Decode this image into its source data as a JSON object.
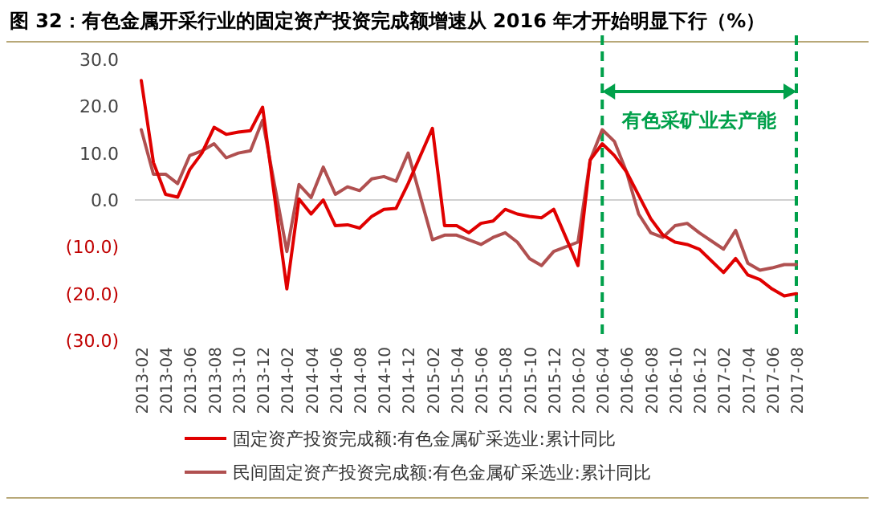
{
  "chart_data": {
    "type": "line",
    "title": "图 32：有色金属开采行业的固定资产投资完成额增速从 2016 年才开始明显下行（%）",
    "categories": [
      "2013-02",
      null,
      "2013-04",
      null,
      "2013-06",
      null,
      "2013-08",
      null,
      "2013-10",
      null,
      "2013-12",
      null,
      "2014-02",
      null,
      "2014-04",
      null,
      "2014-06",
      null,
      "2014-08",
      null,
      "2014-10",
      null,
      "2014-12",
      null,
      "2015-02",
      null,
      "2015-04",
      null,
      "2015-06",
      null,
      "2015-08",
      null,
      "2015-10",
      null,
      "2015-12",
      null,
      "2016-02",
      null,
      "2016-04",
      null,
      "2016-06",
      null,
      "2016-08",
      null,
      "2016-10",
      null,
      "2016-12",
      null,
      "2017-02",
      null,
      "2017-04",
      null,
      "2017-06",
      null,
      "2017-08"
    ],
    "series": [
      {
        "name": "固定资产投资完成额:有色金属矿采选业:累计同比",
        "color": "#e00000",
        "values": [
          25.5,
          8,
          1.2,
          0.6,
          6.5,
          10,
          15.5,
          14,
          14.5,
          14.8,
          19.8,
          null,
          -19,
          0.2,
          -3,
          0,
          -5.5,
          -5.3,
          -6,
          -3.5,
          -2,
          -1.8,
          3.5,
          null,
          15.3,
          -5.5,
          -5.5,
          -7,
          -5,
          -4.5,
          -2,
          -3,
          -3.5,
          -3.8,
          -2,
          null,
          -14,
          8.5,
          12,
          9.5,
          6,
          1,
          -4,
          -7.5,
          -9,
          -9.5,
          -10.5,
          null,
          -15.5,
          -12.5,
          -16,
          -17,
          -19,
          -20.5,
          -20
        ]
      },
      {
        "name": "民间固定资产投资完成额:有色金属矿采选业:累计同比",
        "color": "#b05050",
        "values": [
          15,
          5.5,
          5.5,
          3.5,
          9.5,
          10.5,
          12,
          9,
          10,
          10.5,
          17,
          null,
          -11,
          3.3,
          0.5,
          7,
          1.2,
          2.8,
          2,
          4.5,
          5,
          4,
          10,
          null,
          -8.5,
          -7.5,
          -7.5,
          -8.5,
          -9.5,
          -8,
          -7,
          -9,
          -12.5,
          -14,
          -11,
          null,
          -9,
          8.5,
          15,
          12.5,
          6,
          -3,
          -7,
          -8,
          -5.5,
          -5,
          -7,
          null,
          -10.5,
          -6.5,
          -13.5,
          -15,
          -14.5,
          -13.8,
          -13.8
        ]
      }
    ],
    "ylim": [
      -30,
      30
    ],
    "yticks": [
      {
        "value": 30,
        "label": "30.0"
      },
      {
        "value": 20,
        "label": "20.0"
      },
      {
        "value": 10,
        "label": "10.0"
      },
      {
        "value": 0,
        "label": "0.0"
      },
      {
        "value": -10,
        "label": "(10.0)"
      },
      {
        "value": -20,
        "label": "(20.0)"
      },
      {
        "value": -30,
        "label": "(30.0)"
      }
    ],
    "ref_lines": [
      {
        "axis": "x",
        "value": "2016-04",
        "color": "#00a04a",
        "line_style": "dashed"
      },
      {
        "axis": "x",
        "value": "2017-08",
        "color": "#00a04a",
        "line_style": "dashed"
      }
    ],
    "annotations": [
      "有色采矿业去产能"
    ],
    "legend": "bottom",
    "grid": false,
    "marker": "none",
    "line_style": "solid"
  }
}
